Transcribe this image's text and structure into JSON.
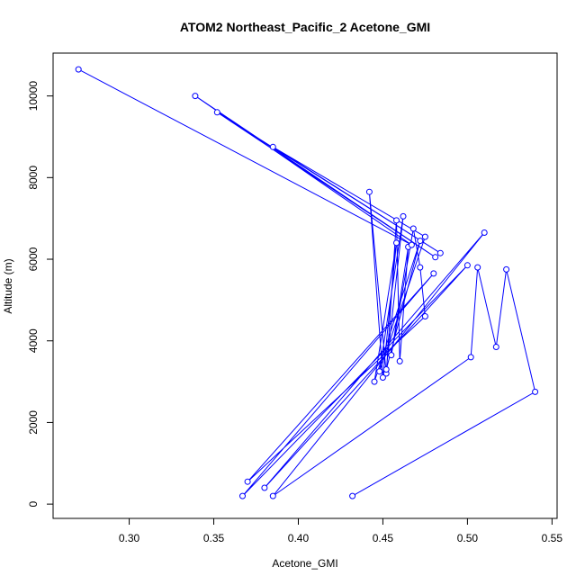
{
  "chart_data": {
    "type": "line",
    "title": "ATOM2 Northeast_Pacific_2 Acetone_GMI",
    "xlabel": "Acetone_GMI",
    "ylabel": "Altitude (m)",
    "xlim": [
      0.255,
      0.553
    ],
    "ylim": [
      -350,
      11050
    ],
    "xticks": [
      0.3,
      0.35,
      0.4,
      0.45,
      0.5,
      0.55
    ],
    "xtick_labels": [
      "0.30",
      "0.35",
      "0.40",
      "0.45",
      "0.50",
      "0.55"
    ],
    "yticks": [
      0,
      2000,
      4000,
      6000,
      8000,
      10000
    ],
    "ytick_labels": [
      "0",
      "2000",
      "4000",
      "6000",
      "8000",
      "10000"
    ],
    "grid": false,
    "legend": "none",
    "color": "#0000ff",
    "marker": "open-circle",
    "series": [
      {
        "x": [
          0.432,
          0.54,
          0.523,
          0.517,
          0.506,
          0.502,
          0.385,
          0.51,
          0.38,
          0.5,
          0.367,
          0.48,
          0.37,
          0.475,
          0.472,
          0.468,
          0.455,
          0.465,
          0.46,
          0.458,
          0.452,
          0.442,
          0.45,
          0.458,
          0.445,
          0.472,
          0.452,
          0.462,
          0.448,
          0.475,
          0.385,
          0.484,
          0.352,
          0.481,
          0.339,
          0.467,
          0.27
        ],
        "y": [
          200,
          2750,
          5750,
          3850,
          5800,
          3600,
          200,
          6650,
          400,
          5850,
          200,
          5650,
          550,
          4600,
          5800,
          6750,
          3650,
          6300,
          3500,
          6950,
          3200,
          7650,
          3100,
          6400,
          3000,
          6450,
          3300,
          7050,
          3250,
          6550,
          8750,
          6150,
          9600,
          6050,
          10000,
          6350,
          10650
        ]
      }
    ]
  }
}
